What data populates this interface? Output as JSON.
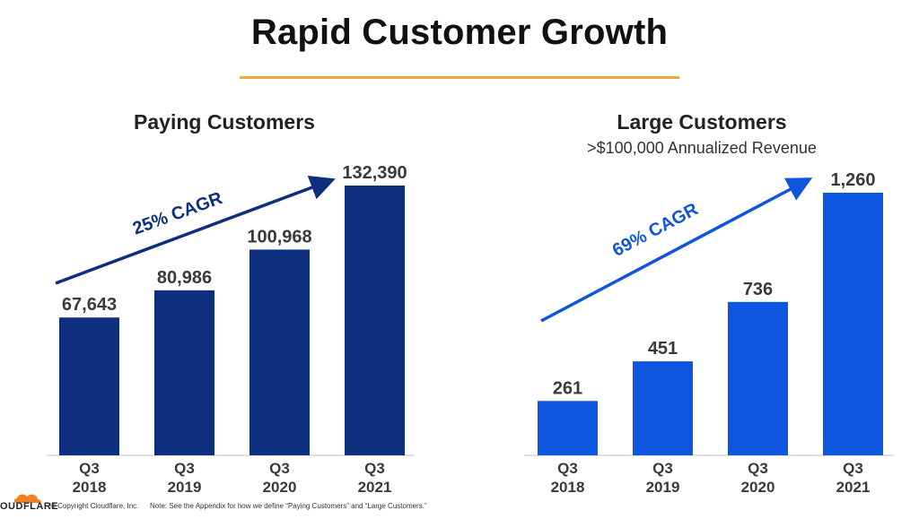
{
  "page": {
    "title": "Rapid Customer Growth",
    "accent_color": "#f3a93a"
  },
  "chart_data": [
    {
      "type": "bar",
      "title": "Paying Customers",
      "subtitle": "",
      "categories": [
        "Q3\n2018",
        "Q3\n2019",
        "Q3\n2020",
        "Q3\n2021"
      ],
      "values": [
        67643,
        80986,
        100968,
        132390
      ],
      "value_labels": [
        "67,643",
        "80,986",
        "100,968",
        "132,390"
      ],
      "annotation": "25% CAGR",
      "color": "#0d2f7e",
      "arrow_color": "#0d2f7e"
    },
    {
      "type": "bar",
      "title": "Large Customers",
      "subtitle": ">$100,000 Annualized Revenue",
      "categories": [
        "Q3\n2018",
        "Q3\n2019",
        "Q3\n2020",
        "Q3\n2021"
      ],
      "values": [
        261,
        451,
        736,
        1260
      ],
      "value_labels": [
        "261",
        "451",
        "736",
        "1,260"
      ],
      "annotation": "69% CAGR",
      "color": "#0e55e0",
      "arrow_color": "#0e55e0"
    }
  ],
  "footer": {
    "logo_text": "OUDFLARE",
    "logo_icon": "cloud-icon",
    "logo_color": "#f38020",
    "copyright": "© Copyright Cloudflare, Inc.",
    "note": "Note: See the Appendix for how we define “Paying Customers” and “Large Customers.”"
  }
}
